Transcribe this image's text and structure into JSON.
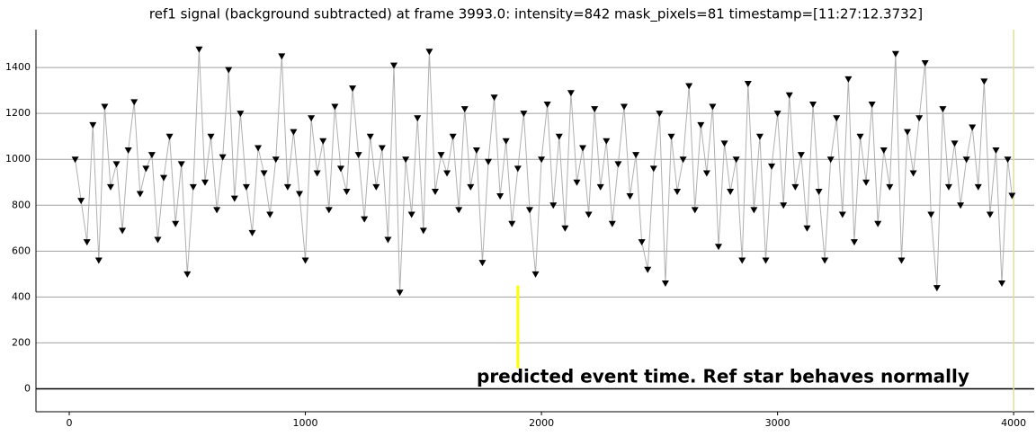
{
  "chart_data": {
    "type": "line",
    "title": "ref1 signal (background subtracted) at frame 3993.0: intensity=842 mask_pixels=81 timestamp=[11:27:12.3732]",
    "annotation": "predicted event time.  Ref star behaves normally",
    "x": [
      25,
      50,
      75,
      100,
      125,
      150,
      175,
      200,
      225,
      250,
      275,
      300,
      325,
      350,
      375,
      400,
      425,
      450,
      475,
      500,
      525,
      550,
      575,
      600,
      625,
      650,
      675,
      700,
      725,
      750,
      775,
      800,
      825,
      850,
      875,
      900,
      925,
      950,
      975,
      1000,
      1025,
      1050,
      1075,
      1100,
      1125,
      1150,
      1175,
      1200,
      1225,
      1250,
      1275,
      1300,
      1325,
      1350,
      1375,
      1400,
      1425,
      1450,
      1475,
      1500,
      1525,
      1550,
      1575,
      1600,
      1625,
      1650,
      1675,
      1700,
      1725,
      1750,
      1775,
      1800,
      1825,
      1850,
      1875,
      1900,
      1925,
      1950,
      1975,
      2000,
      2025,
      2050,
      2075,
      2100,
      2125,
      2150,
      2175,
      2200,
      2225,
      2250,
      2275,
      2300,
      2325,
      2350,
      2375,
      2400,
      2425,
      2450,
      2475,
      2500,
      2525,
      2550,
      2575,
      2600,
      2625,
      2650,
      2675,
      2700,
      2725,
      2750,
      2775,
      2800,
      2825,
      2850,
      2875,
      2900,
      2925,
      2950,
      2975,
      3000,
      3025,
      3050,
      3075,
      3100,
      3125,
      3150,
      3175,
      3200,
      3225,
      3250,
      3275,
      3300,
      3325,
      3350,
      3375,
      3400,
      3425,
      3450,
      3475,
      3500,
      3525,
      3550,
      3575,
      3600,
      3625,
      3650,
      3675,
      3700,
      3725,
      3750,
      3775,
      3800,
      3825,
      3850,
      3875,
      3900,
      3925,
      3950,
      3975,
      3993
    ],
    "series": [
      {
        "name": "ref1",
        "color": "#000000",
        "line_color": "#b0b0b0",
        "values": [
          1000,
          820,
          640,
          1150,
          560,
          1230,
          880,
          980,
          690,
          1040,
          1250,
          850,
          960,
          1020,
          650,
          920,
          1100,
          720,
          980,
          500,
          880,
          1480,
          900,
          1100,
          780,
          1010,
          1390,
          830,
          1200,
          880,
          680,
          1050,
          940,
          760,
          1000,
          1450,
          880,
          1120,
          850,
          560,
          1180,
          940,
          1080,
          780,
          1230,
          960,
          860,
          1310,
          1020,
          740,
          1100,
          880,
          1050,
          650,
          1410,
          420,
          1000,
          760,
          1180,
          690,
          1470,
          860,
          1020,
          940,
          1100,
          780,
          1220,
          880,
          1040,
          550,
          990,
          1270,
          840,
          1080,
          720,
          960,
          1200,
          780,
          500,
          1000,
          1240,
          800,
          1100,
          700,
          1290,
          900,
          1050,
          760,
          1220,
          880,
          1080,
          720,
          980,
          1230,
          840,
          1020,
          640,
          520,
          960,
          1200,
          460,
          1100,
          860,
          1000,
          1320,
          780,
          1150,
          940,
          1230,
          620,
          1070,
          860,
          1000,
          560,
          1330,
          780,
          1100,
          560,
          970,
          1200,
          800,
          1280,
          880,
          1020,
          700,
          1240,
          860,
          560,
          1000,
          1180,
          760,
          1350,
          640,
          1100,
          900,
          1240,
          720,
          1040,
          880,
          1460,
          560,
          1120,
          940,
          1180,
          1420,
          760,
          440,
          1220,
          880,
          1070,
          800,
          1000,
          1140,
          880,
          1340,
          760,
          1040,
          460,
          1000,
          842
        ]
      }
    ],
    "event_line": {
      "x": 1900,
      "ymin": 90,
      "ymax": 450,
      "color": "#ffff00"
    },
    "frame_line": {
      "x": 4000,
      "color": "#e6dc9c"
    },
    "xlim": [
      -141,
      4087
    ],
    "ylim": [
      -100,
      1565
    ],
    "xticks": [
      0,
      1000,
      2000,
      3000,
      4000
    ],
    "yticks": [
      0,
      200,
      400,
      600,
      800,
      1000,
      1200,
      1400
    ],
    "grid": true
  }
}
